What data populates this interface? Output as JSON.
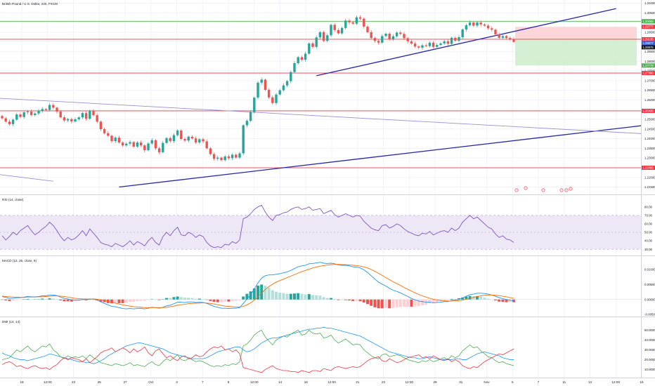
{
  "header": {
    "title": "British Pound / U.S. Dollar, 240, FXCM"
  },
  "colors": {
    "up": "#26a69a",
    "down": "#ef5350",
    "trend": "#2727a8",
    "channel": "#9c8fd0",
    "green_line": "#4caf50",
    "red_line": "#f23645",
    "rsi_line": "#7e57c2",
    "rsi_band": "#ede7f6",
    "macd_line": "#2196f3",
    "signal_line": "#ff6d00",
    "hist_up_strong": "#26a69a",
    "hist_up_weak": "#b2dfdb",
    "hist_down_strong": "#ef5350",
    "hist_down_weak": "#ffcdd2",
    "dmi_adx": "#2196f3",
    "dmi_plus": "#4caf50",
    "dmi_minus": "#f23645",
    "risk_zone": "#fbcfd2",
    "reward_zone": "#cdeccd"
  },
  "price_axis": {
    "ticks": [
      "1.31000",
      "1.30500",
      "1.30000",
      "1.29500",
      "1.29000",
      "1.28500",
      "1.28000",
      "1.27500",
      "1.27000",
      "1.26500",
      "1.26000",
      "1.25500",
      "1.25000",
      "1.24500",
      "1.24000",
      "1.23500",
      "1.23000",
      "1.22500",
      "1.22000",
      "1.21500"
    ],
    "price_labels": [
      {
        "text": "1.30065",
        "kind": "green"
      },
      {
        "text": "1.29777",
        "kind": "red"
      },
      {
        "text": "1.29135",
        "kind": "red"
      },
      {
        "text": "1.29077",
        "kind": "blue"
      },
      {
        "text": "1.28975",
        "kind": "dark"
      },
      {
        "text": "1.27779",
        "kind": "green"
      },
      {
        "text": "1.27390",
        "kind": "red"
      },
      {
        "text": "1.25435",
        "kind": "red"
      },
      {
        "text": "1.22495",
        "kind": "red"
      }
    ]
  },
  "rsi": {
    "title": "RSI (14, close)",
    "ticks": [
      "80.00",
      "70.00",
      "60.00",
      "50.00",
      "40.00",
      "30.00"
    ]
  },
  "macd": {
    "title": "MACD (12, 26, close, 9)",
    "ticks": [
      "0.01000",
      "0.00500",
      "0.00000",
      "-0.00500"
    ]
  },
  "dmi": {
    "title": "DMI (14, 14)",
    "ticks": [
      "50.0000",
      "40.0000",
      "30.0000",
      "20.0000",
      "10.0000"
    ]
  },
  "time_axis": [
    "19",
    "12:00",
    "23",
    "25",
    "27",
    "Oct",
    "3",
    "7",
    "9",
    "12:00",
    "14",
    "16",
    "12:00",
    "21",
    "23",
    "12:00",
    "29",
    "31",
    "Nov",
    "5",
    "7",
    "11",
    "13",
    "12:00",
    "15"
  ],
  "chart_data": {
    "type": "candlestick",
    "series_name": "GBPUSD 240",
    "close": [
      1.2505,
      1.2488,
      1.2475,
      1.2498,
      1.2525,
      1.2512,
      1.2536,
      1.254,
      1.2522,
      1.253,
      1.2545,
      1.2553,
      1.2548,
      1.2574,
      1.256,
      1.254,
      1.251,
      1.2494,
      1.2501,
      1.2489,
      1.25,
      1.251,
      1.2532,
      1.2503,
      1.2544,
      1.2521,
      1.2488,
      1.2449,
      1.2428,
      1.2415,
      1.2387,
      1.2405,
      1.238,
      1.2365,
      1.2374,
      1.2382,
      1.2359,
      1.238,
      1.2365,
      1.234,
      1.2375,
      1.2392,
      1.235,
      1.233,
      1.2378,
      1.2403,
      1.2387,
      1.2418,
      1.2442,
      1.2398,
      1.239,
      1.241,
      1.2401,
      1.238,
      1.2397,
      1.2386,
      1.235,
      1.232,
      1.2296,
      1.2302,
      1.2289,
      1.2308,
      1.2299,
      1.2317,
      1.2302,
      1.2324,
      1.2469,
      1.2492,
      1.2537,
      1.2612,
      1.2689,
      1.2705,
      1.2652,
      1.2613,
      1.2584,
      1.2628,
      1.265,
      1.2675,
      1.2697,
      1.2744,
      1.279,
      1.2821,
      1.2808,
      1.2839,
      1.2892,
      1.2874,
      1.2923,
      1.295,
      1.2905,
      1.2934,
      1.2988,
      1.2961,
      1.2944,
      1.2972,
      1.301,
      1.3001,
      1.2994,
      1.3027,
      1.302,
      1.2979,
      1.295,
      1.292,
      1.2905,
      1.2896,
      1.293,
      1.2942,
      1.2915,
      1.2929,
      1.2948,
      1.2941,
      1.2919,
      1.2903,
      1.2891,
      1.2876,
      1.287,
      1.2882,
      1.2878,
      1.2896,
      1.2874,
      1.2884,
      1.2892,
      1.2903,
      1.289,
      1.2921,
      1.2906,
      1.2924,
      1.2964,
      1.2986,
      1.3,
      1.2984,
      1.3,
      1.299,
      1.2984,
      1.297,
      1.2963,
      1.2939,
      1.2921,
      1.293,
      1.292,
      1.2915,
      1.29
    ],
    "support_resistance_levels": {
      "green": [
        1.30065,
        1.27779
      ],
      "red": [
        1.29135,
        1.2739,
        1.25435,
        1.22495
      ]
    },
    "rsi_values": [
      46,
      41,
      45,
      50,
      47,
      52,
      55,
      58,
      52,
      47,
      50,
      54,
      57,
      62,
      58,
      52,
      45,
      40,
      44,
      41,
      43,
      47,
      52,
      46,
      54,
      49,
      44,
      38,
      36,
      35,
      33,
      37,
      35,
      33,
      36,
      40,
      35,
      39,
      37,
      34,
      40,
      44,
      38,
      35,
      45,
      50,
      46,
      52,
      56,
      47,
      46,
      50,
      48,
      44,
      47,
      45,
      38,
      34,
      32,
      33,
      32,
      36,
      35,
      39,
      37,
      41,
      66,
      68,
      72,
      77,
      80,
      82,
      74,
      68,
      64,
      70,
      71,
      73,
      74,
      77,
      79,
      80,
      77,
      78,
      80,
      76,
      77,
      78,
      72,
      74,
      76,
      71,
      68,
      70,
      72,
      70,
      68,
      70,
      69,
      63,
      59,
      55,
      53,
      52,
      58,
      59,
      55,
      57,
      60,
      58,
      54,
      51,
      49,
      47,
      46,
      49,
      48,
      51,
      47,
      49,
      51,
      52,
      50,
      55,
      52,
      55,
      62,
      66,
      70,
      66,
      68,
      64,
      60,
      56,
      54,
      48,
      44,
      46,
      42,
      41,
      38
    ],
    "macd_values": [
      0.001,
      0.0007,
      0.0004,
      0.0004,
      0.0006,
      0.0006,
      0.0008,
      0.001,
      0.0009,
      0.0009,
      0.001,
      0.0012,
      0.0012,
      0.0015,
      0.0015,
      0.0013,
      0.0008,
      0.0004,
      0.0002,
      -0.0001,
      -0.0002,
      -0.0002,
      0.0,
      -0.0001,
      0.0002,
      0.0002,
      -0.0002,
      -0.0008,
      -0.0013,
      -0.0018,
      -0.0023,
      -0.0024,
      -0.0027,
      -0.003,
      -0.0031,
      -0.003,
      -0.0031,
      -0.003,
      -0.003,
      -0.0031,
      -0.0029,
      -0.0026,
      -0.0027,
      -0.0029,
      -0.0026,
      -0.0021,
      -0.0019,
      -0.0014,
      -0.0009,
      -0.0009,
      -0.001,
      -0.0008,
      -0.0008,
      -0.001,
      -0.0009,
      -0.001,
      -0.0013,
      -0.0018,
      -0.0023,
      -0.0026,
      -0.0029,
      -0.0029,
      -0.003,
      -0.0029,
      -0.0029,
      -0.0027,
      -0.0013,
      0.0001,
      0.0016,
      0.0035,
      0.0055,
      0.0071,
      0.0079,
      0.0082,
      0.0082,
      0.0084,
      0.0086,
      0.0089,
      0.0092,
      0.0097,
      0.0103,
      0.0109,
      0.0112,
      0.0114,
      0.0119,
      0.012,
      0.0122,
      0.0124,
      0.0121,
      0.012,
      0.0121,
      0.0119,
      0.0115,
      0.0114,
      0.0114,
      0.0112,
      0.0109,
      0.0108,
      0.0105,
      0.0099,
      0.009,
      0.0079,
      0.0068,
      0.0058,
      0.0051,
      0.0045,
      0.0037,
      0.0031,
      0.0027,
      0.0022,
      0.0016,
      0.001,
      0.0004,
      -0.0001,
      -0.0005,
      -0.0007,
      -0.0009,
      -0.0009,
      -0.0011,
      -0.001,
      -0.0009,
      -0.0007,
      -0.0007,
      -0.0003,
      -0.0002,
      0.0,
      0.0005,
      0.0011,
      0.0016,
      0.0018,
      0.0021,
      0.0021,
      0.002,
      0.0018,
      0.0015,
      0.0011,
      0.0006,
      0.0003,
      0.0,
      -0.0002,
      -0.0005
    ],
    "signal_values": [
      0.0011,
      0.001,
      0.0009,
      0.0008,
      0.0008,
      0.0007,
      0.0007,
      0.0008,
      0.0008,
      0.0008,
      0.0009,
      0.0009,
      0.001,
      0.0011,
      0.0012,
      0.0012,
      0.0011,
      0.001,
      0.0008,
      0.0006,
      0.0004,
      0.0003,
      0.0002,
      0.0002,
      0.0002,
      0.0002,
      0.0001,
      -0.0001,
      -0.0004,
      -0.0006,
      -0.001,
      -0.0012,
      -0.0015,
      -0.0018,
      -0.002,
      -0.0022,
      -0.0024,
      -0.0025,
      -0.0026,
      -0.0027,
      -0.0027,
      -0.0027,
      -0.0027,
      -0.0027,
      -0.0027,
      -0.0026,
      -0.0024,
      -0.0022,
      -0.0019,
      -0.0017,
      -0.0016,
      -0.0014,
      -0.0013,
      -0.0012,
      -0.0012,
      -0.0011,
      -0.0012,
      -0.0013,
      -0.0015,
      -0.0017,
      -0.002,
      -0.0022,
      -0.0023,
      -0.0024,
      -0.0025,
      -0.0025,
      -0.0023,
      -0.0018,
      -0.0011,
      -0.0002,
      0.0009,
      0.0021,
      0.0033,
      0.0043,
      0.0051,
      0.0058,
      0.0063,
      0.0068,
      0.0073,
      0.0078,
      0.0083,
      0.0088,
      0.0093,
      0.0097,
      0.0101,
      0.0105,
      0.0108,
      0.0111,
      0.0113,
      0.0115,
      0.0116,
      0.0117,
      0.0117,
      0.0116,
      0.0116,
      0.0115,
      0.0114,
      0.0113,
      0.0111,
      0.0109,
      0.0105,
      0.01,
      0.0094,
      0.0087,
      0.008,
      0.0073,
      0.0066,
      0.0059,
      0.0053,
      0.0047,
      0.004,
      0.0034,
      0.0028,
      0.0022,
      0.0017,
      0.0012,
      0.0008,
      0.0004,
      0.0001,
      -0.0001,
      -0.0003,
      -0.0004,
      -0.0005,
      -0.0005,
      -0.0004,
      -0.0004,
      -0.0002,
      0.0001,
      0.0004,
      0.0007,
      0.001,
      0.0012,
      0.0014,
      0.0015,
      0.0015,
      0.0014,
      0.0013,
      0.0011,
      0.0009,
      0.0006,
      0.0004
    ],
    "adx_values": [
      27,
      25,
      24,
      22,
      21,
      20,
      20,
      19,
      20,
      21,
      22,
      23,
      24,
      26,
      25,
      24,
      23,
      22,
      21,
      20,
      19,
      18,
      18,
      17,
      17,
      16,
      17,
      19,
      21,
      24,
      26,
      28,
      30,
      32,
      34,
      35,
      36,
      37,
      37,
      36,
      35,
      34,
      33,
      32,
      31,
      29,
      27,
      26,
      25,
      24,
      23,
      22,
      21,
      21,
      21,
      21,
      22,
      24,
      26,
      28,
      29,
      30,
      31,
      32,
      33,
      33,
      30,
      28,
      29,
      31,
      34,
      37,
      39,
      41,
      42,
      42,
      43,
      44,
      45,
      46,
      47,
      48,
      49,
      50,
      51,
      51,
      52,
      52,
      53,
      52,
      52,
      51,
      50,
      49,
      48,
      47,
      46,
      45,
      44,
      42,
      40,
      38,
      36,
      34,
      32,
      30,
      28,
      27,
      26,
      25,
      24,
      23,
      22,
      22,
      21,
      21,
      22,
      23,
      22,
      21,
      20,
      20,
      20,
      20,
      21,
      21,
      20,
      20,
      22,
      24,
      26,
      27,
      28,
      27,
      26,
      25,
      24,
      22,
      21,
      20,
      20
    ],
    "di_plus_values": [
      20,
      21,
      22,
      26,
      30,
      28,
      31,
      34,
      30,
      28,
      31,
      34,
      33,
      36,
      30,
      27,
      23,
      21,
      24,
      22,
      23,
      22,
      24,
      21,
      25,
      22,
      20,
      17,
      16,
      15,
      14,
      16,
      15,
      14,
      15,
      17,
      14,
      15,
      14,
      13,
      16,
      18,
      15,
      14,
      18,
      21,
      19,
      22,
      25,
      20,
      19,
      21,
      20,
      18,
      19,
      18,
      16,
      14,
      13,
      14,
      13,
      15,
      14,
      16,
      15,
      18,
      34,
      36,
      40,
      45,
      48,
      50,
      43,
      39,
      35,
      40,
      42,
      44,
      43,
      46,
      48,
      50,
      45,
      46,
      50,
      47,
      46,
      47,
      42,
      43,
      45,
      40,
      37,
      39,
      41,
      38,
      35,
      36,
      35,
      30,
      27,
      24,
      22,
      21,
      25,
      26,
      23,
      24,
      25,
      24,
      22,
      20,
      19,
      18,
      17,
      19,
      18,
      20,
      18,
      19,
      21,
      22,
      20,
      24,
      22,
      24,
      29,
      32,
      35,
      32,
      33,
      29,
      26,
      23,
      22,
      19,
      17,
      18,
      16,
      15,
      14
    ],
    "di_minus_values": [
      15,
      17,
      18,
      16,
      13,
      14,
      12,
      11,
      13,
      14,
      12,
      11,
      12,
      10,
      13,
      15,
      19,
      22,
      20,
      22,
      21,
      20,
      18,
      21,
      17,
      20,
      23,
      27,
      29,
      30,
      32,
      28,
      30,
      32,
      30,
      27,
      31,
      28,
      30,
      33,
      27,
      24,
      29,
      31,
      26,
      22,
      24,
      21,
      19,
      23,
      24,
      21,
      22,
      25,
      23,
      24,
      28,
      31,
      33,
      32,
      34,
      30,
      31,
      28,
      30,
      26,
      12,
      11,
      10,
      9,
      8,
      7,
      10,
      12,
      14,
      11,
      10,
      9,
      9,
      8,
      8,
      7,
      9,
      8,
      7,
      9,
      9,
      8,
      11,
      10,
      9,
      12,
      13,
      12,
      11,
      12,
      13,
      12,
      13,
      16,
      19,
      21,
      22,
      23,
      19,
      18,
      21,
      19,
      17,
      18,
      20,
      22,
      23,
      24,
      25,
      22,
      23,
      21,
      24,
      22,
      20,
      19,
      21,
      18,
      20,
      18,
      14,
      12,
      11,
      13,
      12,
      15,
      18,
      20,
      22,
      24,
      26,
      25,
      27,
      29,
      31
    ],
    "trend_lines": [
      {
        "kind": "long ascending support"
      },
      {
        "kind": "short ascending support"
      },
      {
        "kind": "descending channel top"
      },
      {
        "kind": "descending channel bottom"
      }
    ]
  }
}
